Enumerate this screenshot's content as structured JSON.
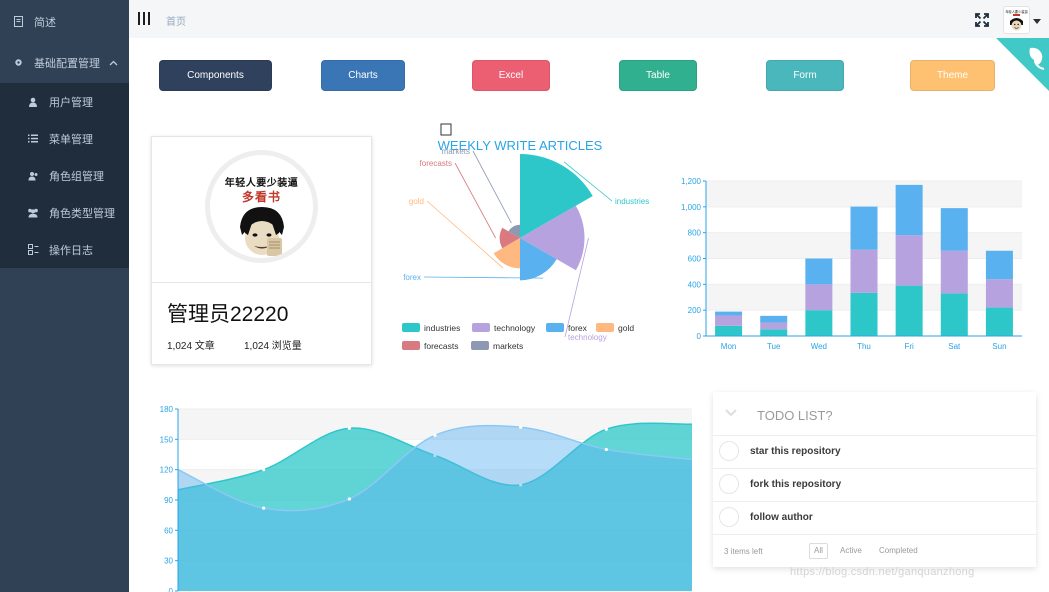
{
  "sidebar": {
    "items": [
      {
        "label": "简述",
        "icon": "document-icon"
      },
      {
        "label": "基础配置管理",
        "icon": "gear-icon",
        "expanded": true
      }
    ],
    "subitems": [
      {
        "label": "用户管理",
        "icon": "user-icon"
      },
      {
        "label": "菜单管理",
        "icon": "list-icon"
      },
      {
        "label": "角色组管理",
        "icon": "user-group-icon"
      },
      {
        "label": "角色类型管理",
        "icon": "users-icon"
      },
      {
        "label": "操作日志",
        "icon": "log-icon"
      }
    ]
  },
  "navbar": {
    "breadcrumb": "首页",
    "avatar_caption": "年轻人要少装逼"
  },
  "shortcuts": [
    {
      "label": "Components",
      "color": "#30415d"
    },
    {
      "label": "Charts",
      "color": "#3a76b5"
    },
    {
      "label": "Excel",
      "color": "#ec5f72"
    },
    {
      "label": "Table",
      "color": "#30b08f"
    },
    {
      "label": "Form",
      "color": "#4ab7bd"
    },
    {
      "label": "Theme",
      "color": "#fec171"
    }
  ],
  "user_card": {
    "meme_line1": "年轻人要少装逼",
    "meme_line2": "多看书",
    "name": "管理员22220",
    "articles": "1,024 文章",
    "views": "1,024 浏览量"
  },
  "colors": {
    "teal": "#2ec7c9",
    "purple": "#b6a2de",
    "blue": "#5ab1ef",
    "orange": "#ffb980",
    "red": "#d87a80",
    "slate": "#8d98b3",
    "axis": "#29a4e6"
  },
  "pie_chart": {
    "chart_data": {
      "type": "pie",
      "title": "WEEKLY WRITE ARTICLES",
      "rose": true,
      "series": [
        {
          "name": "industries",
          "value": 320
        },
        {
          "name": "technology",
          "value": 240
        },
        {
          "name": "forex",
          "value": 149
        },
        {
          "name": "gold",
          "value": 100
        },
        {
          "name": "forecasts",
          "value": 59
        },
        {
          "name": "markets",
          "value": 30
        }
      ],
      "legend": [
        "industries",
        "technology",
        "forex",
        "gold",
        "forecasts",
        "markets"
      ],
      "legend_position": "bottom"
    }
  },
  "bar_chart": {
    "chart_data": {
      "type": "bar",
      "stacked": true,
      "categories": [
        "Mon",
        "Tue",
        "Wed",
        "Thu",
        "Fri",
        "Sat",
        "Sun"
      ],
      "series": [
        {
          "values": [
            79,
            52,
            200,
            334,
            390,
            330,
            220
          ]
        },
        {
          "values": [
            80,
            52,
            200,
            334,
            390,
            330,
            220
          ]
        },
        {
          "values": [
            30,
            52,
            200,
            334,
            390,
            330,
            220
          ]
        }
      ],
      "ylim": [
        0,
        1200
      ],
      "yticks": [
        "0",
        "200",
        "400",
        "600",
        "800",
        "1,000",
        "1,200"
      ],
      "grid": true
    }
  },
  "area_chart": {
    "chart_data": {
      "type": "area",
      "smooth": true,
      "ylim": [
        0,
        180
      ],
      "yticks": [
        "0",
        "30",
        "60",
        "90",
        "120",
        "150",
        "180"
      ],
      "series": [
        {
          "values": [
            100,
            120,
            161,
            134,
            105,
            160,
            165
          ]
        },
        {
          "values": [
            120,
            82,
            91,
            154,
            162,
            140,
            130
          ]
        }
      ]
    }
  },
  "todo": {
    "title": "TODO LIST?",
    "items": [
      "star this repository",
      "fork this repository",
      "follow author"
    ],
    "count": "3 items left",
    "filters": [
      "All",
      "Active",
      "Completed"
    ],
    "selected_filter": "All"
  },
  "watermark": "https://blog.csdn.net/ganquanzhong"
}
